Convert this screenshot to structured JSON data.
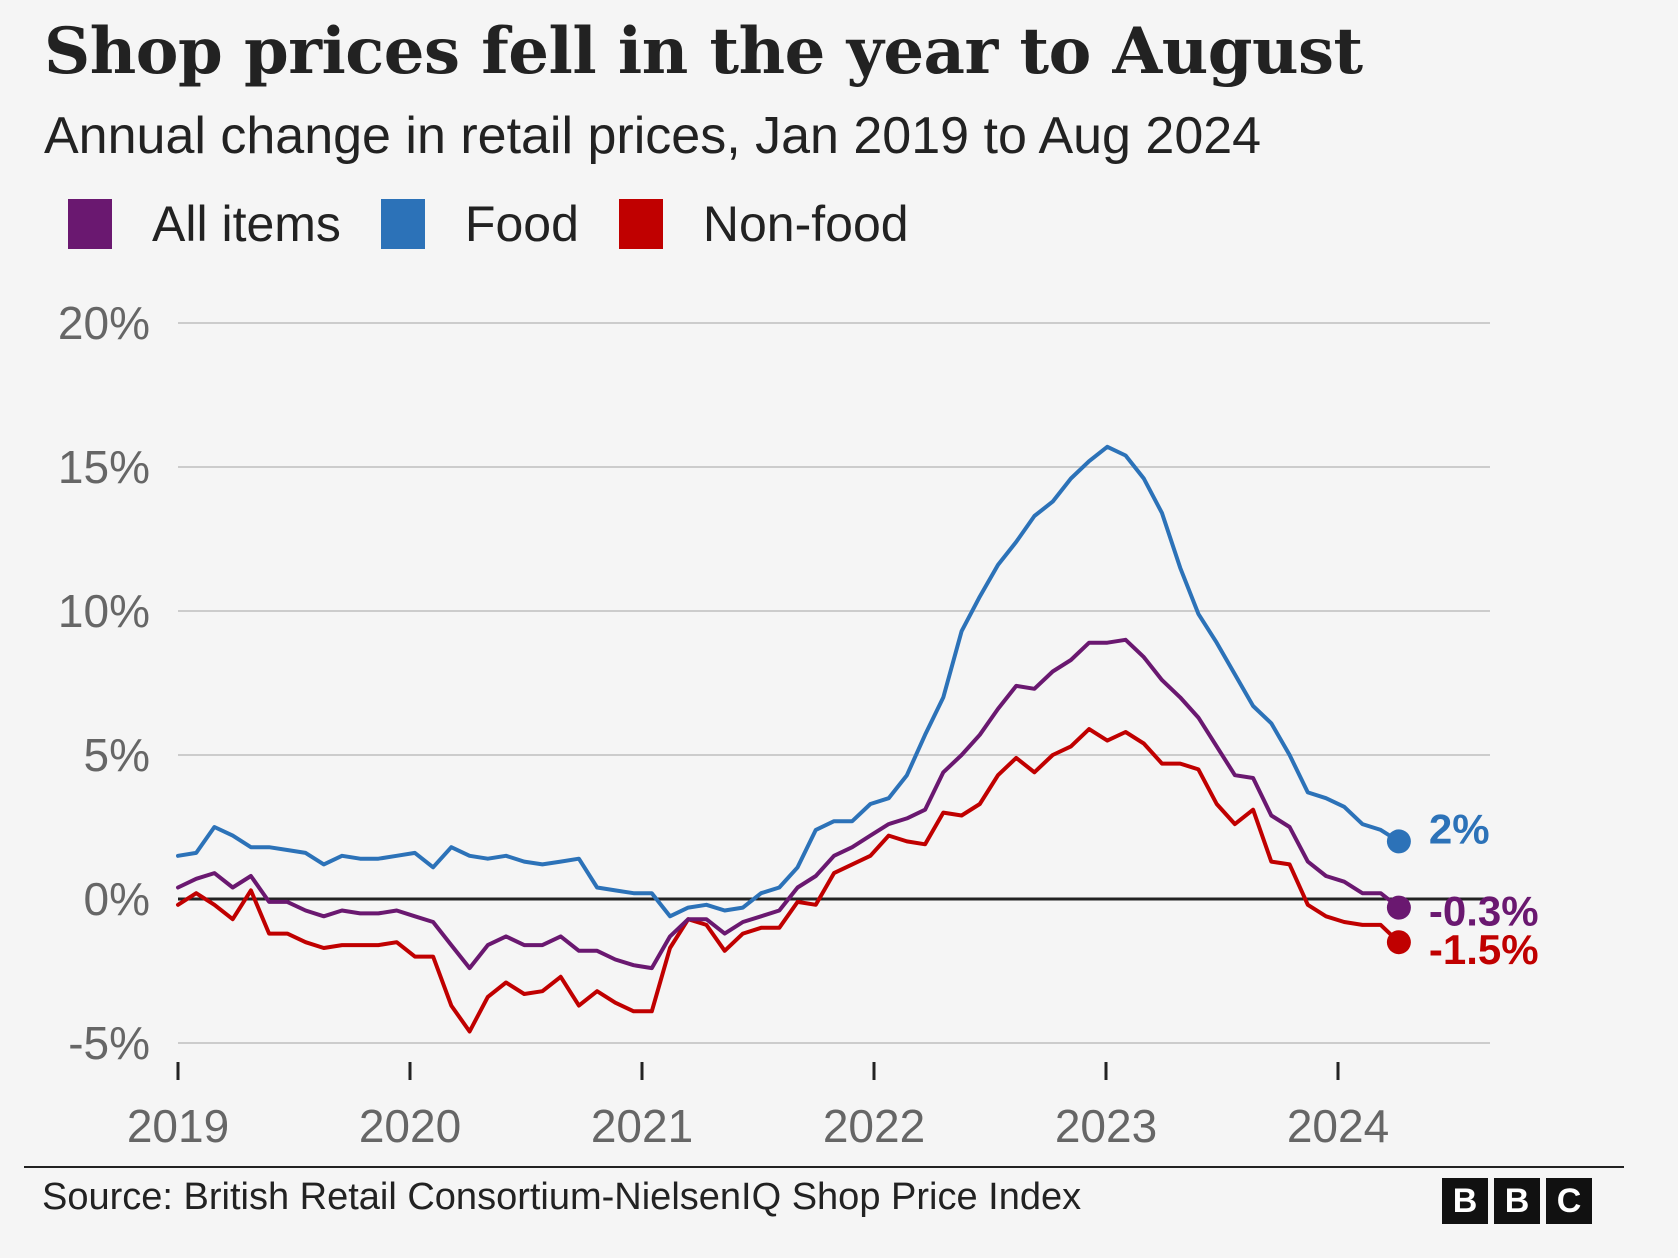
{
  "title": "Shop prices fell in the year to August",
  "subtitle": "Annual change in retail prices, Jan 2019 to Aug 2024",
  "source": "Source: British Retail Consortium-NielsenIQ Shop Price Index",
  "logo": [
    "B",
    "B",
    "C"
  ],
  "colors": {
    "all_items": "#6a1870",
    "food": "#2c72b8",
    "non_food": "#c00000",
    "grid": "#cccccc",
    "zero_line": "#222222",
    "axis_text": "#666666"
  },
  "chart_data": {
    "type": "line",
    "title": "Shop prices fell in the year to August",
    "subtitle": "Annual change in retail prices, Jan 2019 to Aug 2024",
    "xlabel": "",
    "ylabel": "",
    "x_start": "2019-01",
    "x_end": "2024-08",
    "xticks": [
      "2019",
      "2020",
      "2021",
      "2022",
      "2023",
      "2024"
    ],
    "yticks": [
      "-5%",
      "0%",
      "5%",
      "10%",
      "15%",
      "20%"
    ],
    "ylim": [
      -5,
      20
    ],
    "grid": true,
    "legend": "top-left",
    "series": [
      {
        "name": "All items",
        "end_label": "-0.3%",
        "values": [
          0.4,
          0.7,
          0.9,
          0.4,
          0.8,
          -0.1,
          -0.1,
          -0.4,
          -0.6,
          -0.4,
          -0.5,
          -0.5,
          -0.4,
          -0.6,
          -0.8,
          -1.6,
          -2.4,
          -1.6,
          -1.3,
          -1.6,
          -1.6,
          -1.3,
          -1.8,
          -1.8,
          -2.1,
          -2.3,
          -2.4,
          -1.3,
          -0.7,
          -0.7,
          -1.2,
          -0.8,
          -0.6,
          -0.4,
          0.4,
          0.8,
          1.5,
          1.8,
          2.2,
          2.6,
          2.8,
          3.1,
          4.4,
          5.0,
          5.7,
          6.6,
          7.4,
          7.3,
          7.9,
          8.3,
          8.9,
          8.9,
          9.0,
          8.4,
          7.6,
          7.0,
          6.3,
          5.3,
          4.3,
          4.2,
          2.9,
          2.5,
          1.3,
          0.8,
          0.6,
          0.2,
          0.2,
          -0.3
        ]
      },
      {
        "name": "Food",
        "end_label": "2%",
        "values": [
          1.5,
          1.6,
          2.5,
          2.2,
          1.8,
          1.8,
          1.7,
          1.6,
          1.2,
          1.5,
          1.4,
          1.4,
          1.5,
          1.6,
          1.1,
          1.8,
          1.5,
          1.4,
          1.5,
          1.3,
          1.2,
          1.3,
          1.4,
          0.4,
          0.3,
          0.2,
          0.2,
          -0.6,
          -0.3,
          -0.2,
          -0.4,
          -0.3,
          0.2,
          0.4,
          1.1,
          2.4,
          2.7,
          2.7,
          3.3,
          3.5,
          4.3,
          5.7,
          7.0,
          9.3,
          10.5,
          11.6,
          12.4,
          13.3,
          13.8,
          14.6,
          15.2,
          15.7,
          15.4,
          14.6,
          13.4,
          11.5,
          9.9,
          8.9,
          7.8,
          6.7,
          6.1,
          5.0,
          3.7,
          3.5,
          3.2,
          2.6,
          2.4,
          2.0
        ]
      },
      {
        "name": "Non-food",
        "end_label": "-1.5%",
        "values": [
          -0.2,
          0.2,
          -0.2,
          -0.7,
          0.3,
          -1.2,
          -1.2,
          -1.5,
          -1.7,
          -1.6,
          -1.6,
          -1.6,
          -1.5,
          -2.0,
          -2.0,
          -3.7,
          -4.6,
          -3.4,
          -2.9,
          -3.3,
          -3.2,
          -2.7,
          -3.7,
          -3.2,
          -3.6,
          -3.9,
          -3.9,
          -1.7,
          -0.7,
          -0.9,
          -1.8,
          -1.2,
          -1.0,
          -1.0,
          -0.1,
          -0.2,
          0.9,
          1.2,
          1.5,
          2.2,
          2.0,
          1.9,
          3.0,
          2.9,
          3.3,
          4.3,
          4.9,
          4.4,
          5.0,
          5.3,
          5.9,
          5.5,
          5.8,
          5.4,
          4.7,
          4.7,
          4.5,
          3.3,
          2.6,
          3.1,
          1.3,
          1.2,
          -0.2,
          -0.6,
          -0.8,
          -0.9,
          -0.9,
          -1.5
        ]
      }
    ]
  }
}
